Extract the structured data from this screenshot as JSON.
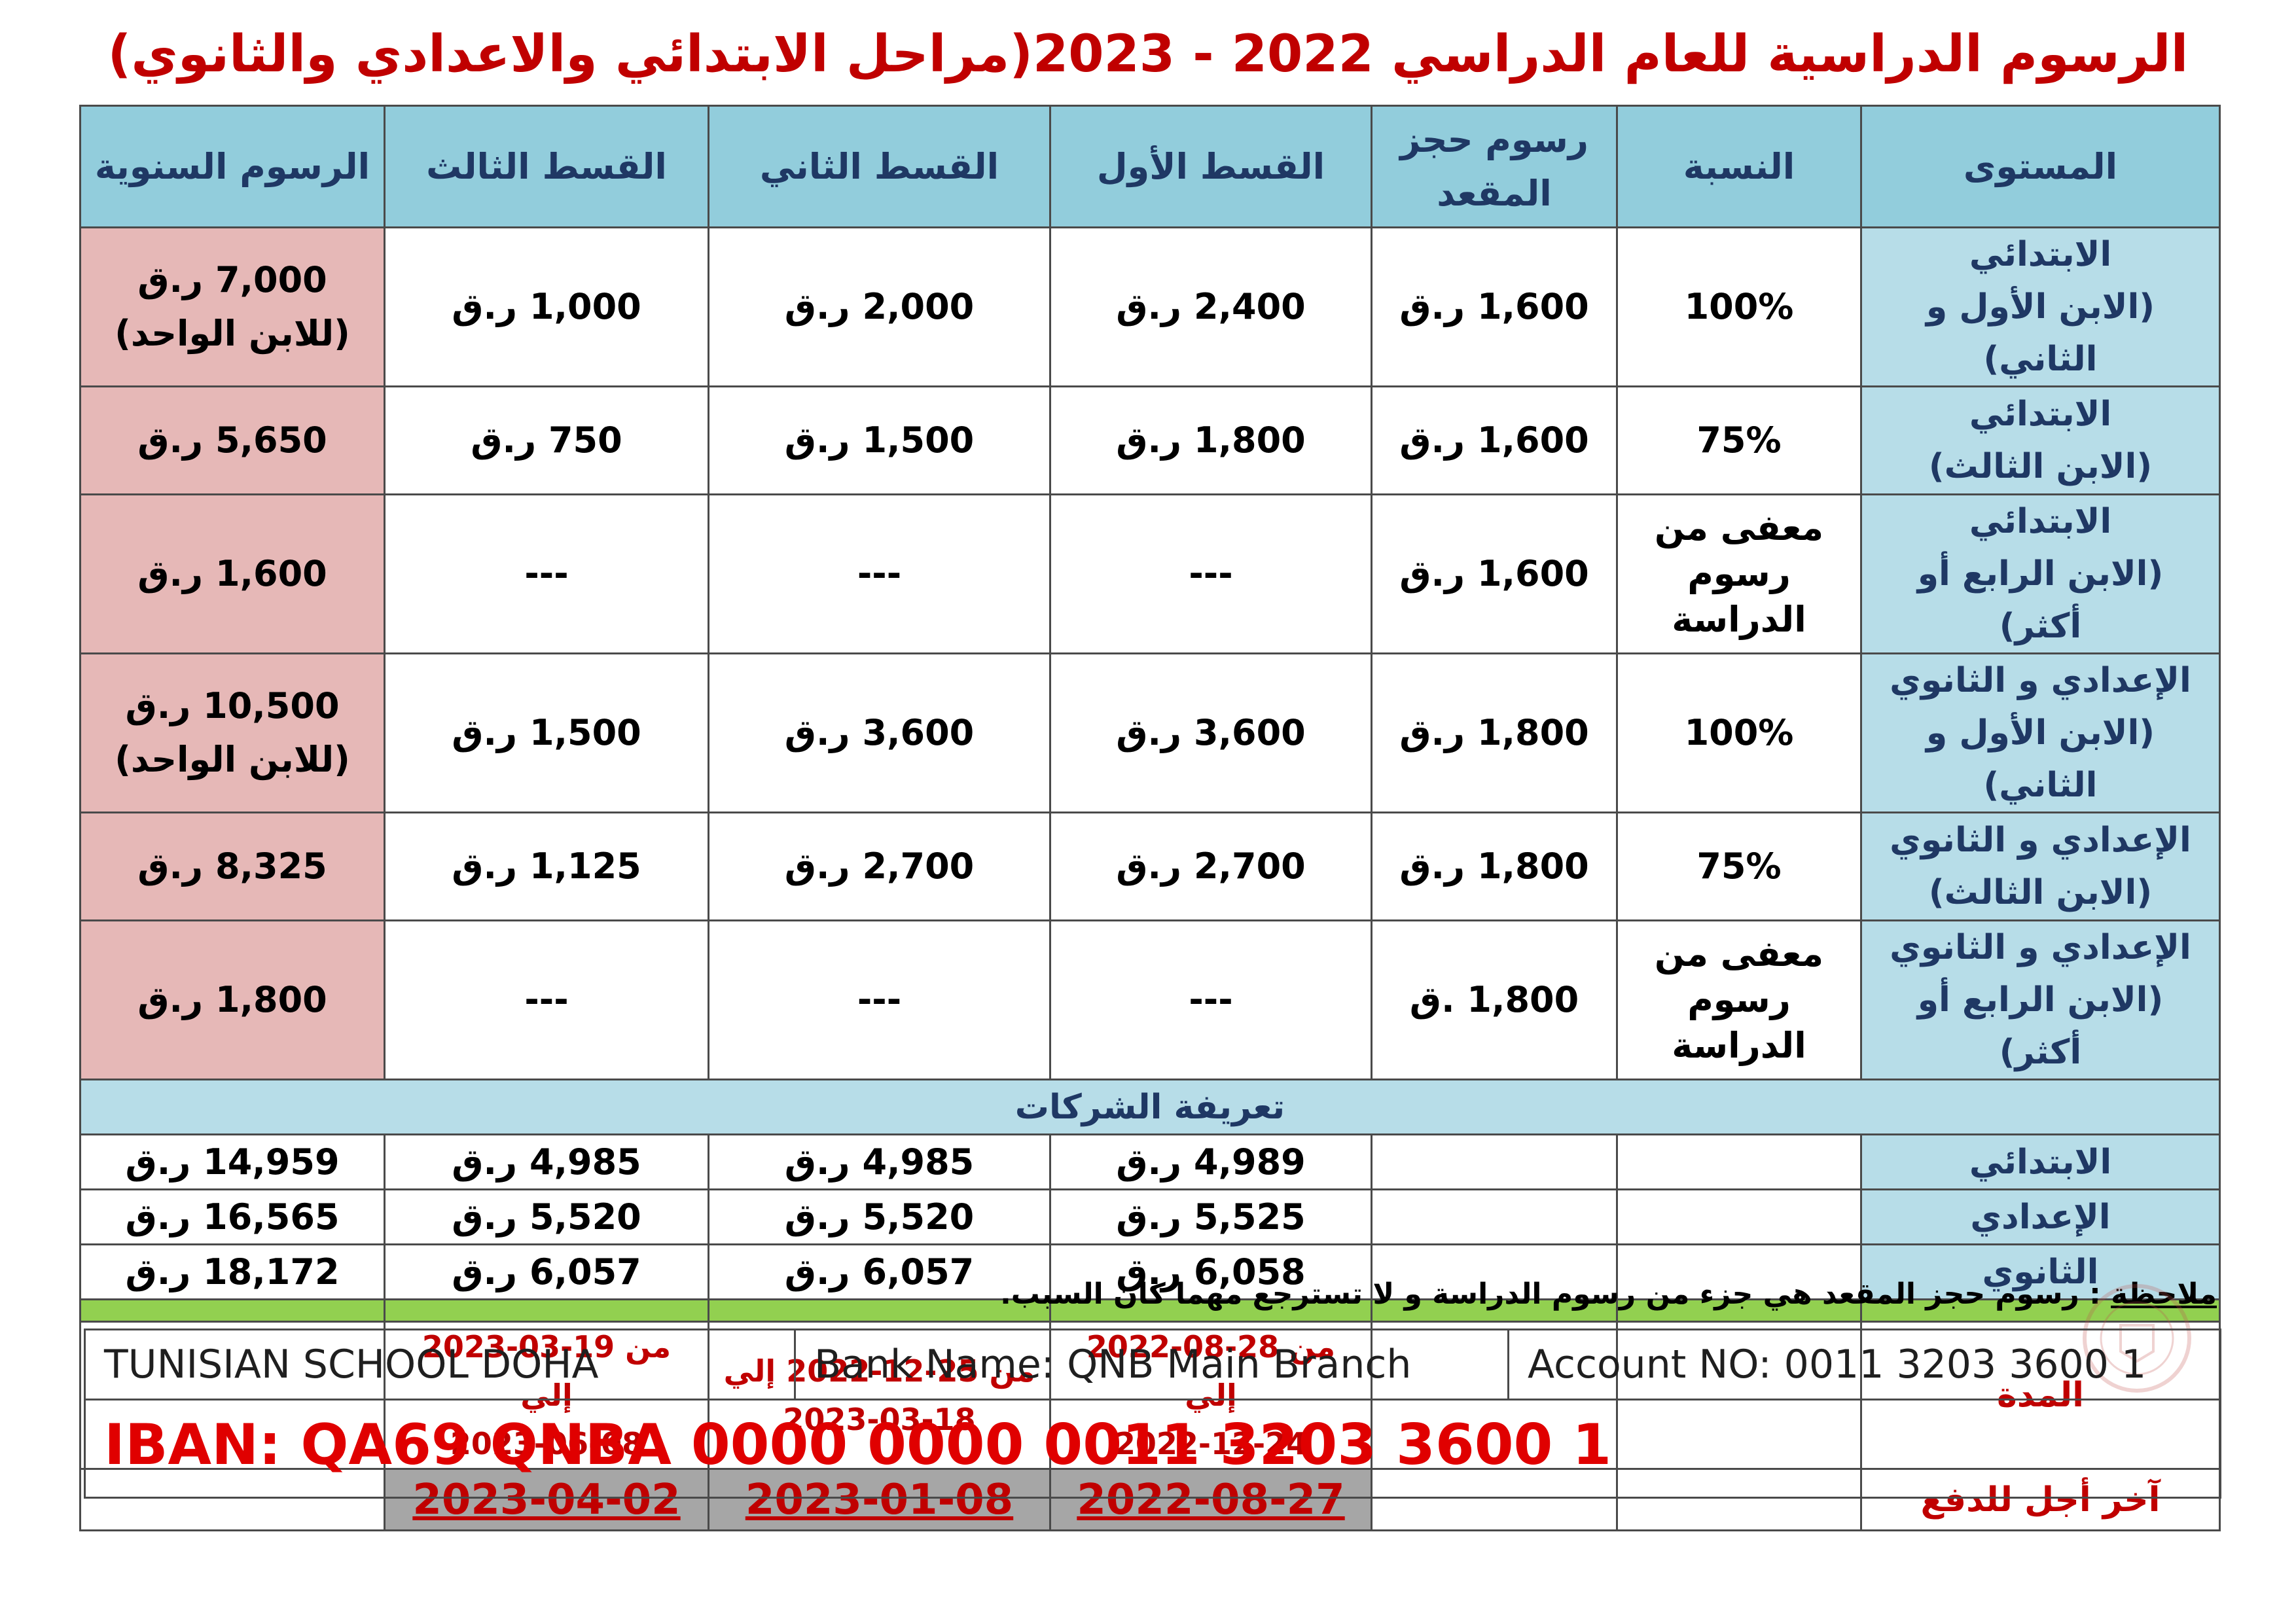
{
  "title": "الرسوم الدراسية للعام الدراسي 2022 - 2023(مراحل الابتدائي والاعدادي والثانوي)",
  "headers": [
    "المستوى",
    "النسبة",
    "رسوم حجز المقعد",
    "القسط الأول",
    "القسط الثاني",
    "القسط الثالث",
    "الرسوم السنوية"
  ],
  "rows": [
    {
      "level": "الابتدائي",
      "level_sub": "(الابن الأول و الثاني)",
      "ratio": "100%",
      "seat": "1,600 ر.ق",
      "inst1": "2,400 ر.ق",
      "inst2": "2,000 ر.ق",
      "inst3": "1,000 ر.ق",
      "annual": "7,000 ر.ق",
      "annual_sub": "(للابن الواحد)"
    },
    {
      "level": "الابتدائي",
      "level_sub": "(الابن الثالث)",
      "ratio": "75%",
      "seat": "1,600 ر.ق",
      "inst1": "1,800 ر.ق",
      "inst2": "1,500 ر.ق",
      "inst3": "750 ر.ق",
      "annual": "5,650 ر.ق",
      "annual_sub": ""
    },
    {
      "level": "الابتدائي",
      "level_sub": "(الابن الرابع أو أكثر)",
      "ratio": "معفى من",
      "ratio_sub": "رسوم الدراسة",
      "seat": "1,600 ر.ق",
      "inst1": "---",
      "inst2": "---",
      "inst3": "---",
      "annual": "1,600 ر.ق",
      "annual_sub": ""
    },
    {
      "level": "الإعدادي و الثانوي",
      "level_sub": "(الابن الأول و الثاني)",
      "ratio": "100%",
      "seat": "1,800 ر.ق",
      "inst1": "3,600 ر.ق",
      "inst2": "3,600 ر.ق",
      "inst3": "1,500 ر.ق",
      "annual": "10,500 ر.ق",
      "annual_sub": "(للابن الواحد)"
    },
    {
      "level": "الإعدادي و الثانوي",
      "level_sub": "(الابن الثالث)",
      "ratio": "75%",
      "seat": "1,800 ر.ق",
      "inst1": "2,700 ر.ق",
      "inst2": "2,700 ر.ق",
      "inst3": "1,125 ر.ق",
      "annual": "8,325 ر.ق",
      "annual_sub": ""
    },
    {
      "level": "الإعدادي و الثانوي",
      "level_sub": "(الابن الرابع أو أكثر)",
      "ratio": "معفى من",
      "ratio_sub": "رسوم الدراسة",
      "seat": "1,800 .ق",
      "inst1": "---",
      "inst2": "---",
      "inst3": "---",
      "annual": "1,800 ر.ق",
      "annual_sub": ""
    }
  ],
  "corporate_title": "تعريفة الشركات",
  "corporate": [
    {
      "level": "الابتدائي",
      "inst1": "4,989 ر.ق",
      "inst2": "4,985 ر.ق",
      "inst3": "4,985 ر.ق",
      "annual": "14,959 ر.ق"
    },
    {
      "level": "الإعدادي",
      "inst1": "5,525 ر.ق",
      "inst2": "5,520 ر.ق",
      "inst3": "5,520 ر.ق",
      "annual": "16,565 ر.ق"
    },
    {
      "level": "الثانوي",
      "inst1": "6,058 ر.ق",
      "inst2": "6,057 ر.ق",
      "inst3": "6,057 ر.ق",
      "annual": "18,172 ر.ق"
    }
  ],
  "period_label": "المدة",
  "periods": [
    {
      "line1": "من 28-08-2022 إلي",
      "line2": "2022-12-24"
    },
    {
      "line1": "من 25-12-2022 إلي",
      "line2": "2023-03-18"
    },
    {
      "line1": "من 19-03-2023 إلي",
      "line2": "2023-06-08"
    }
  ],
  "deadline_label": "آخر أجل للدفع",
  "deadlines": [
    "2022-08-27",
    "2023-01-08",
    "2023-04-02"
  ],
  "note_label": "ملاحظة",
  "note_text": ": رسوم حجز المقعد هي جزء من رسوم الدراسة و لا تسترجع مهما كان السبب.",
  "bank": {
    "school": "TUNISIAN SCHOOL DOHA",
    "bank_name": "Bank Name: QNB Main Branch",
    "account": "Account NO: 0011 3203 3600 1",
    "iban": "IBAN: QA69 QNBA 0000 0000 0011 3203 3600 1"
  },
  "seal_text": "TUNISIAN SCHOOL IN DOHA"
}
